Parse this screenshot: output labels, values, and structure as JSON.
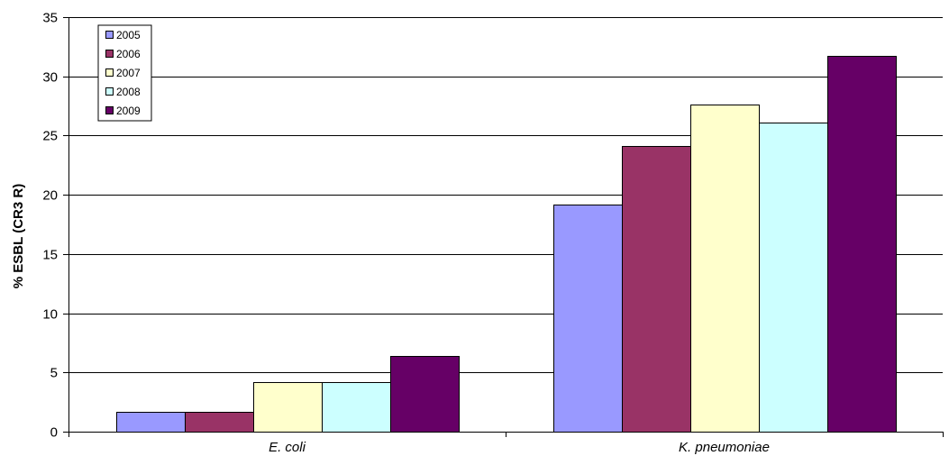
{
  "chart_data": {
    "type": "bar",
    "title": "",
    "xlabel": "",
    "ylabel": "% ESBL (CR3 R)",
    "categories": [
      "E. coli",
      "K. pneumoniae"
    ],
    "series": [
      {
        "name": "2005",
        "color": "#9999ff",
        "values": [
          1.7,
          19.2
        ]
      },
      {
        "name": "2006",
        "color": "#993366",
        "values": [
          1.7,
          24.1
        ]
      },
      {
        "name": "2007",
        "color": "#ffffcc",
        "values": [
          4.2,
          27.6
        ]
      },
      {
        "name": "2008",
        "color": "#ccffff",
        "values": [
          4.2,
          26.1
        ]
      },
      {
        "name": "2009",
        "color": "#660066",
        "values": [
          6.4,
          31.7
        ]
      }
    ],
    "ylim": [
      0,
      35
    ],
    "yticks": [
      0,
      5,
      10,
      15,
      20,
      25,
      30,
      35
    ],
    "grid": true,
    "legend_position": "top-left"
  }
}
